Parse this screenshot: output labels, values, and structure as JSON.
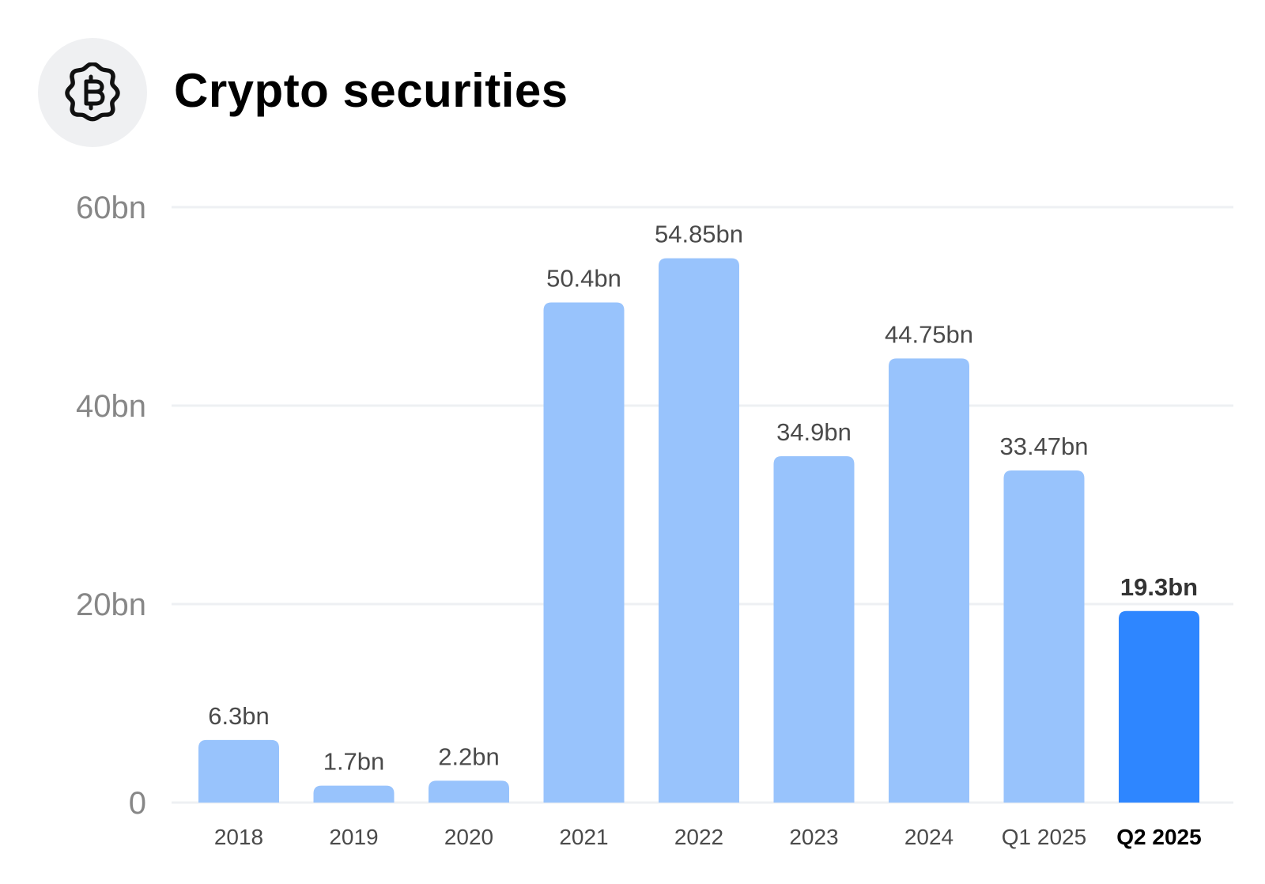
{
  "header": {
    "title": "Crypto securities",
    "icon": "bitcoin-icon"
  },
  "colors": {
    "bar": "#98c3fc",
    "highlight_bar": "#2e86ff",
    "gridline": "#eef0f3",
    "tick_label": "#878787",
    "value_label": "#4a4a4a",
    "icon_bg": "#eff0f2"
  },
  "chart_data": {
    "type": "bar",
    "title": "Crypto securities",
    "xlabel": "",
    "ylabel": "",
    "categories": [
      "2018",
      "2019",
      "2020",
      "2021",
      "2022",
      "2023",
      "2024",
      "Q1 2025",
      "Q2 2025"
    ],
    "values": [
      6.3,
      1.7,
      2.2,
      50.4,
      54.85,
      34.9,
      44.75,
      33.47,
      19.3
    ],
    "value_labels": [
      "6.3bn",
      "1.7bn",
      "2.2bn",
      "50.4bn",
      "54.85bn",
      "34.9bn",
      "44.75bn",
      "33.47bn",
      "19.3bn"
    ],
    "highlighted_category": "Q2 2025",
    "ylim": [
      0,
      60
    ],
    "yticks": [
      0,
      20,
      40,
      60
    ],
    "ytick_labels": [
      "0",
      "20bn",
      "40bn",
      "60bn"
    ],
    "grid": true,
    "legend": "none"
  }
}
